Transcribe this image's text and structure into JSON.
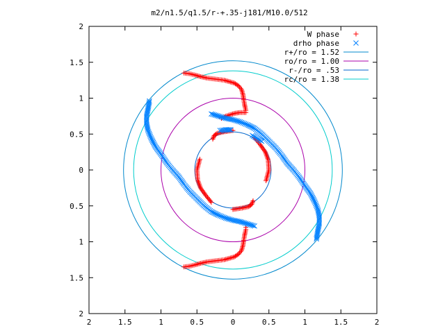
{
  "chart_data": {
    "type": "scatter",
    "title": "m2/n1.5/q1.5/r-+.35-j181/M10.0/512",
    "xlim": [
      -2,
      2
    ],
    "ylim": [
      -2,
      2
    ],
    "x_ticks": [
      "2",
      "1.5",
      "1",
      "0.5",
      "0",
      "0.5",
      "1",
      "1.5",
      "2"
    ],
    "y_ticks": [
      "2",
      "1.5",
      "1",
      "0.5",
      "0",
      "0.5",
      "1",
      "1.5",
      "2"
    ],
    "x_tick_values": [
      -2,
      -1.5,
      -1,
      -0.5,
      0,
      0.5,
      1,
      1.5,
      2
    ],
    "y_tick_values": [
      2,
      1.5,
      1,
      0.5,
      0,
      -0.5,
      -1,
      -1.5,
      -2
    ],
    "grid": false,
    "legend_position": "top-right",
    "series": [
      {
        "name": "W phase",
        "kind": "points",
        "marker": "plus",
        "color": "#ff0000",
        "points": [
          [
            -0.68,
            1.35
          ],
          [
            -0.6,
            1.34
          ],
          [
            -0.52,
            1.32
          ],
          [
            -0.45,
            1.3
          ],
          [
            -0.36,
            1.28
          ],
          [
            -0.28,
            1.27
          ],
          [
            -0.2,
            1.26
          ],
          [
            -0.12,
            1.25
          ],
          [
            -0.05,
            1.23
          ],
          [
            0.02,
            1.21
          ],
          [
            0.08,
            1.17
          ],
          [
            0.12,
            1.12
          ],
          [
            0.14,
            1.05
          ],
          [
            0.15,
            0.98
          ],
          [
            0.16,
            0.92
          ],
          [
            0.17,
            0.87
          ],
          [
            0.18,
            0.83
          ],
          [
            0.18,
            0.8
          ],
          [
            0.1,
            0.8
          ],
          [
            0.03,
            0.79
          ],
          [
            -0.04,
            0.77
          ],
          [
            -0.1,
            0.75
          ],
          [
            -0.16,
            0.72
          ],
          [
            -0.68,
            -1.35
          ],
          [
            -0.6,
            -1.34
          ],
          [
            -0.52,
            -1.32
          ],
          [
            -0.45,
            -1.3
          ],
          [
            -0.36,
            -1.28
          ],
          [
            -0.28,
            -1.27
          ],
          [
            -0.2,
            -1.26
          ],
          [
            -0.12,
            -1.25
          ],
          [
            -0.05,
            -1.23
          ],
          [
            0.02,
            -1.21
          ],
          [
            0.08,
            -1.17
          ],
          [
            0.12,
            -1.12
          ],
          [
            0.14,
            -1.05
          ],
          [
            0.15,
            -0.98
          ],
          [
            0.16,
            -0.92
          ],
          [
            0.17,
            -0.87
          ],
          [
            0.18,
            -0.83
          ],
          [
            0.18,
            -0.8
          ],
          [
            0.0,
            0.55
          ],
          [
            -0.13,
            0.53
          ],
          [
            -0.22,
            0.51
          ],
          [
            -0.26,
            0.48
          ],
          [
            -0.28,
            0.43
          ],
          [
            -0.46,
            0.15
          ],
          [
            -0.5,
            0.0
          ],
          [
            -0.49,
            -0.14
          ],
          [
            -0.45,
            -0.25
          ],
          [
            -0.38,
            -0.35
          ],
          [
            -0.3,
            -0.45
          ],
          [
            0.0,
            -0.55
          ],
          [
            0.13,
            -0.53
          ],
          [
            0.22,
            -0.51
          ],
          [
            0.26,
            -0.48
          ],
          [
            0.28,
            -0.43
          ],
          [
            0.46,
            -0.15
          ],
          [
            0.5,
            0.0
          ],
          [
            0.49,
            0.14
          ],
          [
            0.45,
            0.25
          ],
          [
            0.38,
            0.35
          ],
          [
            0.3,
            0.45
          ]
        ]
      },
      {
        "name": "drho phase",
        "kind": "points",
        "marker": "cross",
        "color": "#0080ff",
        "points": [
          [
            -0.18,
            0.55
          ],
          [
            -0.1,
            0.56
          ],
          [
            -0.03,
            0.56
          ],
          [
            0.27,
            0.48
          ],
          [
            0.4,
            0.4
          ],
          [
            -1.16,
            0.96
          ],
          [
            -1.18,
            0.85
          ],
          [
            -1.2,
            0.75
          ],
          [
            -1.2,
            0.65
          ],
          [
            -1.18,
            0.55
          ],
          [
            -1.14,
            0.45
          ],
          [
            -1.08,
            0.33
          ],
          [
            -1.0,
            0.22
          ],
          [
            -0.92,
            0.1
          ],
          [
            -0.84,
            0.0
          ],
          [
            -0.75,
            -0.1
          ],
          [
            -0.68,
            -0.2
          ],
          [
            -0.6,
            -0.3
          ],
          [
            -0.5,
            -0.4
          ],
          [
            -0.4,
            -0.5
          ],
          [
            -0.3,
            -0.58
          ],
          [
            -0.2,
            -0.63
          ],
          [
            -0.1,
            -0.67
          ],
          [
            0.0,
            -0.7
          ],
          [
            0.1,
            -0.72
          ],
          [
            0.2,
            -0.75
          ],
          [
            0.3,
            -0.78
          ],
          [
            1.16,
            -0.96
          ],
          [
            1.18,
            -0.85
          ],
          [
            1.2,
            -0.75
          ],
          [
            1.2,
            -0.65
          ],
          [
            1.18,
            -0.55
          ],
          [
            1.14,
            -0.45
          ],
          [
            1.08,
            -0.33
          ],
          [
            1.0,
            -0.22
          ],
          [
            0.92,
            -0.1
          ],
          [
            0.84,
            0.0
          ],
          [
            0.75,
            0.1
          ],
          [
            0.68,
            0.2
          ],
          [
            0.6,
            0.3
          ],
          [
            0.5,
            0.4
          ],
          [
            0.4,
            0.5
          ],
          [
            0.3,
            0.58
          ],
          [
            0.2,
            0.63
          ],
          [
            0.1,
            0.67
          ],
          [
            0.0,
            0.7
          ],
          [
            -0.1,
            0.72
          ],
          [
            -0.2,
            0.75
          ],
          [
            -0.3,
            0.78
          ]
        ]
      },
      {
        "name": "r+/ro = 1.52",
        "kind": "circle",
        "radius": 1.52,
        "color": "#0088cc"
      },
      {
        "name": "ro/ro = 1.00",
        "kind": "circle",
        "radius": 1.0,
        "color": "#aa00aa"
      },
      {
        "name": "r-/ro = .53",
        "kind": "circle",
        "radius": 0.53,
        "color": "#0066cc"
      },
      {
        "name": "rc/ro = 1.38",
        "kind": "circle",
        "radius": 1.38,
        "color": "#00cccc"
      }
    ]
  }
}
